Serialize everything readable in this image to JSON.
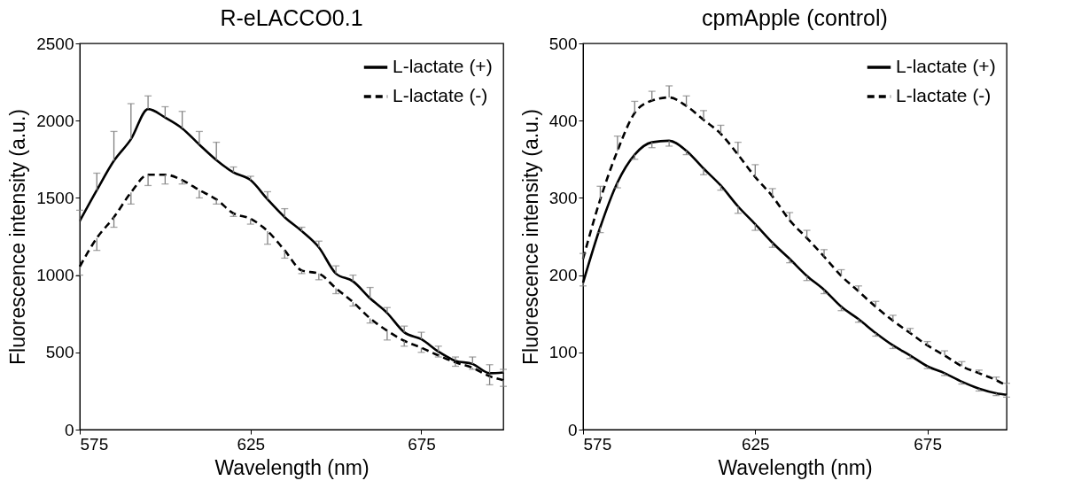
{
  "chart_data": [
    {
      "type": "line",
      "title": "R-eLACCO0.1",
      "xlabel": "Wavelength (nm)",
      "ylabel": "Fluorescence intensity (a.u.)",
      "x": [
        575,
        580,
        585,
        590,
        595,
        600,
        605,
        610,
        615,
        620,
        625,
        630,
        635,
        640,
        645,
        650,
        655,
        660,
        665,
        670,
        675,
        680,
        685,
        690,
        695,
        699
      ],
      "xlim": [
        575,
        699
      ],
      "xticks": [
        575,
        625,
        675
      ],
      "ylim": [
        0,
        2500
      ],
      "yticks": [
        0,
        500,
        1000,
        1500,
        2000,
        2500
      ],
      "grid": false,
      "legend": "top right",
      "marker": "none",
      "series": [
        {
          "name": "L-lactate (+)",
          "color": "#000000",
          "line_style": "solid",
          "values": [
            1350,
            1550,
            1740,
            1880,
            2075,
            2020,
            1950,
            1845,
            1745,
            1665,
            1615,
            1490,
            1375,
            1285,
            1180,
            1010,
            960,
            850,
            755,
            630,
            585,
            505,
            445,
            425,
            365,
            370
          ],
          "errors": [
            [
              1350,
              1420
            ],
            [
              1550,
              1660
            ],
            [
              1740,
              1930
            ],
            [
              1880,
              2110
            ],
            [
              2075,
              2160
            ],
            [
              2020,
              2090
            ],
            [
              1950,
              2060
            ],
            [
              1845,
              1930
            ],
            [
              1745,
              1860
            ],
            [
              1665,
              1700
            ],
            [
              1615,
              1640
            ],
            [
              1490,
              1540
            ],
            [
              1375,
              1430
            ],
            [
              1285,
              1310
            ],
            [
              1180,
              1220
            ],
            [
              1010,
              1060
            ],
            [
              960,
              1000
            ],
            [
              850,
              920
            ],
            [
              755,
              790
            ],
            [
              630,
              670
            ],
            [
              585,
              630
            ],
            [
              505,
              540
            ],
            [
              445,
              470
            ],
            [
              425,
              470
            ],
            [
              365,
              420
            ],
            [
              370,
              390
            ]
          ]
        },
        {
          "name": "L-lactate (-)",
          "color": "#000000",
          "line_style": "dashed",
          "values": [
            1055,
            1240,
            1375,
            1535,
            1650,
            1650,
            1615,
            1550,
            1490,
            1400,
            1365,
            1285,
            1160,
            1030,
            1010,
            915,
            825,
            720,
            640,
            575,
            530,
            480,
            435,
            400,
            345,
            320
          ],
          "errors": [
            [
              1000,
              1055
            ],
            [
              1160,
              1240
            ],
            [
              1310,
              1375
            ],
            [
              1460,
              1535
            ],
            [
              1580,
              1650
            ],
            [
              1590,
              1650
            ],
            [
              1590,
              1615
            ],
            [
              1500,
              1550
            ],
            [
              1460,
              1490
            ],
            [
              1380,
              1400
            ],
            [
              1330,
              1365
            ],
            [
              1200,
              1285
            ],
            [
              1110,
              1160
            ],
            [
              1010,
              1030
            ],
            [
              970,
              1010
            ],
            [
              880,
              915
            ],
            [
              800,
              825
            ],
            [
              690,
              720
            ],
            [
              580,
              640
            ],
            [
              540,
              575
            ],
            [
              500,
              530
            ],
            [
              470,
              480
            ],
            [
              410,
              435
            ],
            [
              390,
              400
            ],
            [
              290,
              345
            ],
            [
              280,
              320
            ]
          ]
        }
      ]
    },
    {
      "type": "line",
      "title": "cpmApple (control)",
      "xlabel": "Wavelength (nm)",
      "ylabel": "Fluorescence intensity (a.u.)",
      "x": [
        575,
        580,
        585,
        590,
        595,
        600,
        605,
        610,
        615,
        620,
        625,
        630,
        635,
        640,
        645,
        650,
        655,
        660,
        665,
        670,
        675,
        680,
        685,
        690,
        695,
        698
      ],
      "xlim": [
        575,
        698
      ],
      "xticks": [
        575,
        625,
        675
      ],
      "ylim": [
        0,
        500
      ],
      "yticks": [
        0,
        100,
        200,
        300,
        400,
        500
      ],
      "grid": false,
      "legend": "top right",
      "marker": "none",
      "series": [
        {
          "name": "L-lactate (+)",
          "color": "#000000",
          "line_style": "solid",
          "values": [
            190,
            262,
            320,
            356,
            372,
            374,
            361,
            338,
            316,
            289,
            266,
            242,
            221,
            199,
            181,
            159,
            143,
            125,
            109,
            96,
            82,
            73,
            62,
            53,
            47,
            45
          ],
          "errors": [
            [
              186,
              190
            ],
            [
              255,
              262
            ],
            [
              313,
              320
            ],
            [
              350,
              356
            ],
            [
              365,
              372
            ],
            [
              367,
              374
            ],
            [
              356,
              361
            ],
            [
              330,
              338
            ],
            [
              310,
              316
            ],
            [
              280,
              289
            ],
            [
              258,
              266
            ],
            [
              236,
              242
            ],
            [
              216,
              221
            ],
            [
              193,
              199
            ],
            [
              176,
              181
            ],
            [
              154,
              159
            ],
            [
              139,
              143
            ],
            [
              121,
              125
            ],
            [
              105,
              109
            ],
            [
              92,
              96
            ],
            [
              79,
              82
            ],
            [
              70,
              73
            ],
            [
              59,
              62
            ],
            [
              50,
              53
            ],
            [
              44,
              47
            ],
            [
              42,
              45
            ]
          ]
        },
        {
          "name": "L-lactate (-)",
          "color": "#000000",
          "line_style": "dashed",
          "values": [
            221,
            298,
            361,
            410,
            426,
            430,
            419,
            401,
            383,
            356,
            327,
            302,
            271,
            248,
            224,
            199,
            179,
            159,
            141,
            125,
            109,
            96,
            82,
            73,
            64,
            57
          ],
          "errors": [
            [
              221,
              228
            ],
            [
              298,
              315
            ],
            [
              361,
              380
            ],
            [
              410,
              425
            ],
            [
              426,
              438
            ],
            [
              430,
              445
            ],
            [
              419,
              432
            ],
            [
              401,
              413
            ],
            [
              383,
              394
            ],
            [
              356,
              372
            ],
            [
              327,
              343
            ],
            [
              302,
              312
            ],
            [
              271,
              281
            ],
            [
              248,
              258
            ],
            [
              224,
              233
            ],
            [
              199,
              207
            ],
            [
              179,
              186
            ],
            [
              159,
              166
            ],
            [
              141,
              148
            ],
            [
              125,
              131
            ],
            [
              109,
              114
            ],
            [
              96,
              102
            ],
            [
              82,
              88
            ],
            [
              73,
              77
            ],
            [
              64,
              68
            ],
            [
              57,
              60
            ]
          ]
        }
      ]
    }
  ]
}
